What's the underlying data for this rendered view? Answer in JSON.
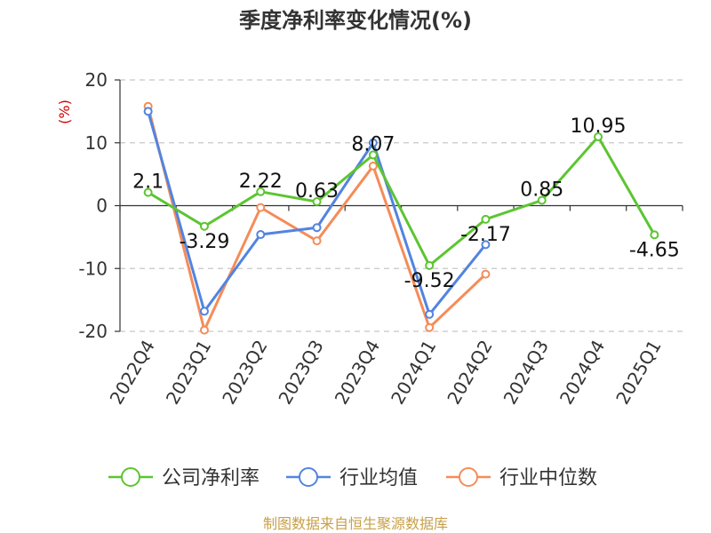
{
  "chart_data": {
    "type": "line",
    "title": "季度净利率变化情况(%)",
    "ylabel": "(%)",
    "ylim": [
      -20,
      20
    ],
    "yticks": [
      20,
      10,
      0,
      -10,
      -20
    ],
    "grid": true,
    "legend_position": "bottom",
    "categories": [
      "2022Q4",
      "2023Q1",
      "2023Q2",
      "2023Q3",
      "2023Q4",
      "2024Q1",
      "2024Q2",
      "2024Q3",
      "2024Q4",
      "2025Q1"
    ],
    "series": [
      {
        "name": "公司净利率",
        "color": "#5cc531",
        "values": [
          2.1,
          -3.29,
          2.22,
          0.63,
          8.07,
          -9.52,
          -2.17,
          0.85,
          10.95,
          -4.65
        ],
        "labels": [
          "2.1",
          "-3.29",
          "2.22",
          "0.63",
          "8.07",
          "-9.52",
          "-2.17",
          "0.85",
          "10.95",
          "-4.65"
        ]
      },
      {
        "name": "行业均值",
        "color": "#5284e0",
        "values": [
          15.0,
          -16.8,
          -4.6,
          -3.5,
          10.0,
          -17.3,
          -6.2,
          null,
          null,
          null
        ]
      },
      {
        "name": "行业中位数",
        "color": "#f58c58",
        "values": [
          15.8,
          -19.8,
          -0.3,
          -5.6,
          6.3,
          -19.4,
          -10.9,
          null,
          null,
          null
        ]
      }
    ],
    "source": "制图数据来自恒生聚源数据库"
  }
}
